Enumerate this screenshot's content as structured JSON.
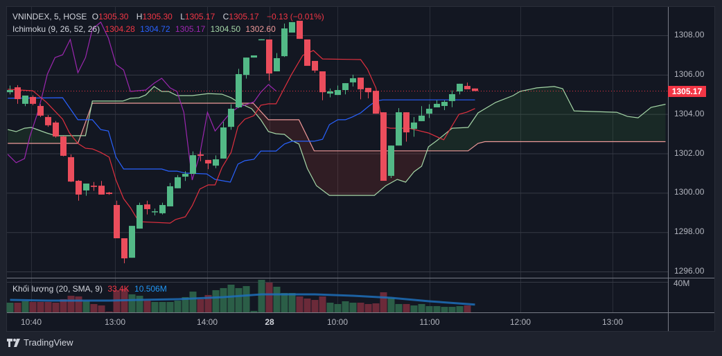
{
  "legend": {
    "symbol": "VNINDEX, 5, HOSE",
    "open_label": "O",
    "open": "1305.30",
    "high_label": "H",
    "high": "1305.30",
    "low_label": "L",
    "low": "1305.17",
    "close_label": "C",
    "close": "1305.17",
    "change": "−0.13 (−0.01%)",
    "ichimoku_label": "Ichimoku (9, 26, 52, 26)",
    "tenkan": "1304.28",
    "kijun": "1304.72",
    "chikou": "1305.17",
    "senkou_a": "1304.50",
    "senkou_b": "1302.60",
    "volume_label": "Khối lượng (20, SMA, 9)",
    "volume": "33.4K",
    "volume_ma": "10.506M"
  },
  "price_axis": [
    "1308.00",
    "1306.00",
    "1304.00",
    "1302.00",
    "1300.00",
    "1298.00",
    "1296.00"
  ],
  "last_price": "1305.17",
  "volume_axis": "40M",
  "time_axis": [
    {
      "label": "10:40"
    },
    {
      "label": "13:00"
    },
    {
      "label": "14:00"
    },
    {
      "label": "28",
      "bold": true
    },
    {
      "label": "10:00"
    },
    {
      "label": "11:00"
    },
    {
      "label": "12:00"
    },
    {
      "label": "13:00"
    }
  ],
  "brand": "TradingView",
  "colors": {
    "up": "#53b987",
    "down": "#eb4d5c",
    "vol_up": "#2b5e47",
    "vol_down": "#6b2a39",
    "tenkan": "#e0303f",
    "kijun": "#2962ff",
    "chikou": "#9c27b0",
    "span_a": "#a5d6a7",
    "span_b": "#ef9a9a",
    "vol_ma": "#1e6fb8"
  },
  "chart_data": {
    "type": "candlestick",
    "ylim": [
      1295.6,
      1309.4
    ],
    "candles": [
      [
        1305.11,
        1305.45,
        1305.0,
        1305.22
      ],
      [
        1305.36,
        1305.47,
        1304.52,
        1304.76
      ],
      [
        1304.52,
        1304.94,
        1304.4,
        1304.94
      ],
      [
        1304.87,
        1304.95,
        1304.45,
        1304.52
      ],
      [
        1304.41,
        1304.5,
        1303.85,
        1303.92
      ],
      [
        1303.85,
        1303.95,
        1303.35,
        1303.43
      ],
      [
        1303.57,
        1303.65,
        1302.8,
        1302.86
      ],
      [
        1302.86,
        1302.9,
        1301.85,
        1301.88
      ],
      [
        1301.81,
        1301.95,
        1300.55,
        1300.57
      ],
      [
        1300.61,
        1300.65,
        1299.6,
        1299.91
      ],
      [
        1300.12,
        1300.47,
        1299.85,
        1300.47
      ],
      [
        1300.36,
        1300.55,
        1300.1,
        1300.3
      ],
      [
        1300.36,
        1300.6,
        1299.91,
        1299.91
      ],
      [
        1300.01,
        1300.05,
        1299.9,
        1299.94
      ],
      [
        1299.38,
        1299.6,
        1297.69,
        1297.69
      ],
      [
        1297.69,
        1297.69,
        1296.42,
        1296.67
      ],
      [
        1296.7,
        1298.32,
        1296.7,
        1298.32
      ],
      [
        1298.18,
        1299.5,
        1298.18,
        1299.38
      ],
      [
        1299.41,
        1299.6,
        1298.9,
        1299.17
      ],
      [
        1299.03,
        1299.2,
        1298.85,
        1299.06
      ],
      [
        1298.96,
        1299.5,
        1298.9,
        1299.38
      ],
      [
        1299.31,
        1300.5,
        1299.31,
        1300.33
      ],
      [
        1300.23,
        1300.9,
        1300.23,
        1300.79
      ],
      [
        1300.82,
        1301.1,
        1300.6,
        1300.96
      ],
      [
        1300.96,
        1302.1,
        1300.96,
        1301.91
      ],
      [
        1301.95,
        1302.1,
        1301.6,
        1301.88
      ],
      [
        1301.67,
        1301.67,
        1301.2,
        1301.49
      ],
      [
        1301.38,
        1301.9,
        1301.25,
        1301.7
      ],
      [
        1301.74,
        1303.6,
        1301.74,
        1303.32
      ],
      [
        1303.35,
        1304.5,
        1303.2,
        1304.27
      ],
      [
        1304.34,
        1306.3,
        1304.3,
        1306.03
      ],
      [
        1305.99,
        1306.87,
        1305.8,
        1306.87
      ],
      [
        1306.87,
        1306.98,
        1306.87,
        1306.98
      ],
      [
        1307.79,
        1307.8,
        1307.79,
        1307.8
      ],
      [
        1307.79,
        1307.79,
        1305.7,
        1306.06
      ],
      [
        1306.17,
        1307.1,
        1306.17,
        1306.84
      ],
      [
        1306.94,
        1308.6,
        1306.9,
        1308.35
      ],
      [
        1308.14,
        1308.67,
        1308.14,
        1308.67
      ],
      [
        1308.74,
        1308.74,
        1307.82,
        1307.82
      ],
      [
        1307.79,
        1307.79,
        1306.45,
        1306.45
      ],
      [
        1306.7,
        1306.7,
        1306.1,
        1306.21
      ],
      [
        1306.17,
        1306.17,
        1304.7,
        1305.11
      ],
      [
        1305.04,
        1305.3,
        1304.85,
        1305.15
      ],
      [
        1304.97,
        1305.45,
        1304.97,
        1305.22
      ],
      [
        1305.22,
        1305.57,
        1305.0,
        1305.57
      ],
      [
        1305.61,
        1306.0,
        1305.4,
        1305.82
      ],
      [
        1305.85,
        1305.85,
        1304.75,
        1305.26
      ],
      [
        1305.33,
        1305.33,
        1304.8,
        1305.11
      ],
      [
        1305.18,
        1305.18,
        1304.02,
        1304.02
      ],
      [
        1304.09,
        1304.09,
        1300.61,
        1300.61
      ],
      [
        1300.86,
        1302.4,
        1300.75,
        1302.4
      ],
      [
        1302.4,
        1304.3,
        1302.4,
        1304.09
      ],
      [
        1304.09,
        1304.09,
        1302.6,
        1303.07
      ],
      [
        1303.25,
        1303.85,
        1302.85,
        1303.57
      ],
      [
        1303.64,
        1304.4,
        1303.64,
        1303.92
      ],
      [
        1304.02,
        1304.5,
        1303.8,
        1304.27
      ],
      [
        1304.34,
        1304.7,
        1304.34,
        1304.52
      ],
      [
        1304.41,
        1304.7,
        1304.2,
        1304.62
      ],
      [
        1304.66,
        1305.2,
        1304.35,
        1305.01
      ],
      [
        1305.15,
        1305.54,
        1305.0,
        1305.54
      ],
      [
        1305.43,
        1305.6,
        1305.26,
        1305.26
      ],
      [
        1305.3,
        1305.3,
        1305.17,
        1305.17
      ]
    ],
    "volume_millions": [
      13,
      13,
      15,
      14,
      14,
      14,
      13,
      17.7,
      22.3,
      21.4,
      14.9,
      11.2,
      9.3,
      1,
      29.8,
      31.6,
      24.2,
      22.3,
      15.8,
      14,
      14,
      14,
      15.8,
      20.5,
      27.9,
      17.7,
      23.3,
      29.8,
      32.6,
      37.2,
      32.6,
      35.3,
      2,
      43.7,
      40,
      34.4,
      26,
      26,
      21.4,
      18.6,
      16.7,
      21.4,
      13,
      11.2,
      14.9,
      13,
      13,
      11.2,
      12.1,
      27,
      19.5,
      11.2,
      11.2,
      9.3,
      11.2,
      8.4,
      8.4,
      7.4,
      7.4,
      8.4,
      9.3,
      0.0334
    ],
    "volume_ma": [
      [
        0,
        16.7
      ],
      [
        5,
        15.8
      ],
      [
        13,
        15.8
      ],
      [
        17,
        16.7
      ],
      [
        22,
        17.7
      ],
      [
        28,
        20.5
      ],
      [
        33,
        24.2
      ],
      [
        40,
        24.2
      ],
      [
        45,
        22.3
      ],
      [
        50,
        19.5
      ],
      [
        55,
        14.9
      ],
      [
        61,
        10.506
      ]
    ],
    "tenkan": [
      [
        -0.3,
        1305.26
      ],
      [
        3.0,
        1305.18
      ],
      [
        4.8,
        1304.59
      ],
      [
        6.9,
        1303.74
      ],
      [
        7.8,
        1303.04
      ],
      [
        8.9,
        1302.51
      ],
      [
        9.9,
        1302.26
      ],
      [
        10.8,
        1302.23
      ],
      [
        11.9,
        1302.05
      ],
      [
        13.0,
        1301.81
      ],
      [
        13.9,
        1300.65
      ],
      [
        14.9,
        1299.7
      ],
      [
        15.8,
        1299.24
      ],
      [
        16.9,
        1298.53
      ],
      [
        21.0,
        1298.46
      ],
      [
        21.7,
        1298.64
      ],
      [
        23.0,
        1298.78
      ],
      [
        23.9,
        1299.34
      ],
      [
        24.9,
        1300.19
      ],
      [
        26.0,
        1300.4
      ],
      [
        26.9,
        1300.4
      ],
      [
        27.8,
        1301.28
      ],
      [
        29.0,
        1302.05
      ],
      [
        29.9,
        1303.36
      ],
      [
        30.8,
        1303.74
      ],
      [
        32.0,
        1303.92
      ],
      [
        32.9,
        1304.45
      ],
      [
        33.9,
        1304.52
      ],
      [
        34.9,
        1304.52
      ],
      [
        36.9,
        1305.99
      ],
      [
        38.4,
        1306.98
      ],
      [
        39.8,
        1307.23
      ],
      [
        41.0,
        1306.8
      ],
      [
        46.0,
        1306.77
      ],
      [
        46.9,
        1306.28
      ],
      [
        48.0,
        1305.33
      ],
      [
        48.9,
        1303.36
      ],
      [
        49.9,
        1303.28
      ],
      [
        52.3,
        1303.28
      ],
      [
        54.9,
        1303.04
      ],
      [
        56.9,
        1302.69
      ],
      [
        58.9,
        1303.99
      ],
      [
        59.9,
        1304.09
      ],
      [
        61.0,
        1304.28
      ]
    ],
    "kijun": [
      [
        -0.3,
        1304.8
      ],
      [
        6.9,
        1304.83
      ],
      [
        8.9,
        1303.71
      ],
      [
        10.8,
        1303.71
      ],
      [
        11.9,
        1303.21
      ],
      [
        12.9,
        1303.14
      ],
      [
        13.9,
        1301.81
      ],
      [
        14.9,
        1301.21
      ],
      [
        19.9,
        1301.21
      ],
      [
        20.8,
        1301.1
      ],
      [
        21.9,
        1301.1
      ],
      [
        23.0,
        1301.0
      ],
      [
        25.8,
        1300.96
      ],
      [
        26.9,
        1300.68
      ],
      [
        28.9,
        1300.54
      ],
      [
        29.9,
        1301.46
      ],
      [
        30.8,
        1301.63
      ],
      [
        32.0,
        1301.7
      ],
      [
        32.9,
        1302.12
      ],
      [
        34.9,
        1302.12
      ],
      [
        36.0,
        1302.48
      ],
      [
        37.0,
        1302.62
      ],
      [
        39.9,
        1302.62
      ],
      [
        41.0,
        1302.72
      ],
      [
        41.9,
        1303.46
      ],
      [
        43.0,
        1303.71
      ],
      [
        44.0,
        1303.71
      ],
      [
        44.9,
        1303.85
      ],
      [
        46.0,
        1304.06
      ],
      [
        47.1,
        1304.41
      ],
      [
        48.0,
        1304.66
      ],
      [
        48.9,
        1304.72
      ],
      [
        61.0,
        1304.72
      ]
    ],
    "chikou": [
      [
        -0.3,
        1301.95
      ],
      [
        0.8,
        1301.53
      ],
      [
        1.9,
        1301.74
      ],
      [
        2.6,
        1302.86
      ],
      [
        3.5,
        1303.92
      ],
      [
        4.1,
        1304.76
      ],
      [
        4.9,
        1306.03
      ],
      [
        5.9,
        1306.87
      ],
      [
        6.9,
        1307.01
      ],
      [
        7.9,
        1307.79
      ],
      [
        8.9,
        1306.1
      ],
      [
        9.9,
        1306.87
      ],
      [
        10.8,
        1308.32
      ],
      [
        11.9,
        1308.67
      ],
      [
        12.9,
        1307.86
      ],
      [
        13.9,
        1306.52
      ],
      [
        14.9,
        1306.24
      ],
      [
        15.8,
        1305.15
      ],
      [
        17.8,
        1305.22
      ],
      [
        18.9,
        1305.57
      ],
      [
        19.9,
        1305.82
      ],
      [
        21.0,
        1305.33
      ],
      [
        21.9,
        1305.15
      ],
      [
        22.8,
        1304.09
      ],
      [
        23.9,
        1300.65
      ],
      [
        24.9,
        1301.95
      ],
      [
        25.9,
        1304.09
      ],
      [
        26.9,
        1303.14
      ],
      [
        28.9,
        1304.06
      ],
      [
        29.9,
        1304.34
      ],
      [
        32.0,
        1304.62
      ],
      [
        32.9,
        1305.11
      ],
      [
        33.9,
        1305.5
      ],
      [
        34.9,
        1305.17
      ]
    ],
    "senkou_a": [
      [
        -0.3,
        1303.21
      ],
      [
        0.8,
        1303.11
      ],
      [
        1.9,
        1303.28
      ],
      [
        2.8,
        1303.32
      ],
      [
        4.8,
        1303.04
      ],
      [
        6.0,
        1302.9
      ],
      [
        9.9,
        1302.9
      ],
      [
        10.8,
        1304.66
      ],
      [
        14.8,
        1304.66
      ],
      [
        15.8,
        1304.8
      ],
      [
        16.9,
        1304.83
      ],
      [
        17.8,
        1304.97
      ],
      [
        18.9,
        1305.4
      ],
      [
        19.9,
        1305.15
      ],
      [
        20.8,
        1305.15
      ],
      [
        21.9,
        1304.94
      ],
      [
        23.9,
        1304.94
      ],
      [
        26.0,
        1305.04
      ],
      [
        27.8,
        1305.01
      ],
      [
        29.0,
        1304.83
      ],
      [
        30.3,
        1304.52
      ],
      [
        31.7,
        1304.27
      ],
      [
        32.9,
        1303.71
      ],
      [
        33.9,
        1303.11
      ],
      [
        34.9,
        1303.0
      ],
      [
        36.0,
        1302.97
      ],
      [
        37.0,
        1302.65
      ],
      [
        37.9,
        1302.48
      ],
      [
        39.0,
        1301.24
      ],
      [
        40.2,
        1300.36
      ],
      [
        41.9,
        1299.87
      ],
      [
        47.8,
        1299.87
      ],
      [
        49.3,
        1300.36
      ],
      [
        50.8,
        1300.68
      ],
      [
        51.9,
        1300.54
      ],
      [
        53.0,
        1301.07
      ],
      [
        54.0,
        1301.35
      ],
      [
        54.9,
        1302.34
      ],
      [
        56.0,
        1302.65
      ],
      [
        58.0,
        1303.28
      ],
      [
        60.1,
        1303.32
      ],
      [
        61.4,
        1304.06
      ],
      [
        63.7,
        1304.59
      ],
      [
        66.0,
        1304.94
      ],
      [
        66.9,
        1305.15
      ],
      [
        69.1,
        1305.33
      ],
      [
        71.4,
        1305.4
      ],
      [
        72.5,
        1305.29
      ],
      [
        74.0,
        1304.16
      ],
      [
        79.6,
        1304.09
      ],
      [
        81.0,
        1303.88
      ],
      [
        82.4,
        1303.81
      ],
      [
        84.1,
        1304.34
      ],
      [
        86.0,
        1304.5
      ]
    ],
    "senkou_b": [
      [
        -0.3,
        1302.51
      ],
      [
        8.9,
        1302.51
      ],
      [
        10.8,
        1304.55
      ],
      [
        31.9,
        1304.55
      ],
      [
        33.9,
        1303.71
      ],
      [
        37.9,
        1303.71
      ],
      [
        39.9,
        1302.13
      ],
      [
        60.1,
        1302.13
      ],
      [
        61.4,
        1302.51
      ],
      [
        62.3,
        1302.6
      ],
      [
        86.0,
        1302.6
      ]
    ]
  }
}
